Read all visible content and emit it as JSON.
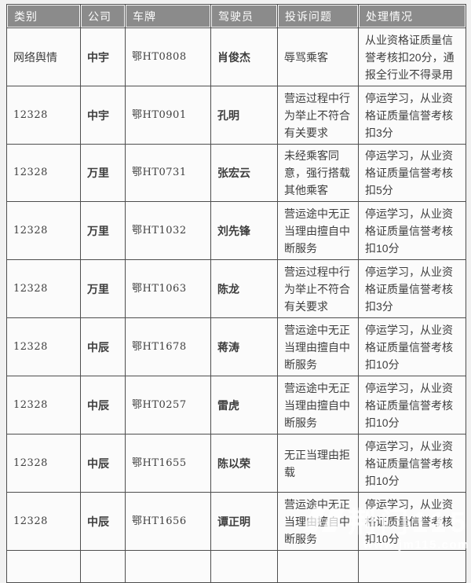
{
  "table": {
    "headers": [
      "类别",
      "公司",
      "车牌",
      "驾驶员",
      "投诉问题",
      "处理情况"
    ],
    "rows": [
      [
        "网络舆情",
        "中宇",
        "鄂HT0808",
        "肖俊杰",
        "辱骂乘客",
        "从业资格证质量信誉考核扣20分，通报全行业不得录用"
      ],
      [
        "12328",
        "中宇",
        "鄂HT0901",
        "孔明",
        "营运过程中行为举止不符合有关要求",
        "停运学习，从业资格证质量信誉考核扣3分"
      ],
      [
        "12328",
        "万里",
        "鄂HT0731",
        "张宏云",
        "未经乘客同意，强行搭载其他乘客",
        "停运学习，从业资格证质量信誉考核扣5分"
      ],
      [
        "12328",
        "万里",
        "鄂HT1032",
        "刘先锋",
        "营运途中无正当理由擅自中断服务",
        "停运学习，从业资格证质量信誉考核扣10分"
      ],
      [
        "12328",
        "万里",
        "鄂HT1063",
        "陈龙",
        "营运过程中行为举止不符合有关要求",
        "停运学习，从业资格证质量信誉考核扣3分"
      ],
      [
        "12328",
        "中辰",
        "鄂HT1678",
        "蒋涛",
        "营运途中无正当理由擅自中断服务",
        "停运学习，从业资格证质量信誉考核扣10分"
      ],
      [
        "12328",
        "中辰",
        "鄂HT0257",
        "雷虎",
        "营运途中无正当理由擅自中断服务",
        "停运学习，从业资格证质量信誉考核扣10分"
      ],
      [
        "12328",
        "中辰",
        "鄂HT1655",
        "陈以荣",
        "无正当理由拒载",
        "停运学习，从业资格证质量信誉考核扣10分"
      ],
      [
        "12328",
        "中辰",
        "鄂HT1656",
        "谭正明",
        "营运途中无正当理由擅自中断服务",
        "停运学习，从业资格证质量信誉考核扣10分"
      ]
    ]
  },
  "watermark": {
    "logo": "荆门115",
    "url": "www.jm115.com"
  },
  "colors": {
    "page_bg": "#f1f1f1",
    "header_bg": "#8b8b8b",
    "header_text": "#fdfdfd",
    "cell_bg": "#fbfbfb",
    "border": "#4e4e4e",
    "text": "#3e3e3e"
  }
}
